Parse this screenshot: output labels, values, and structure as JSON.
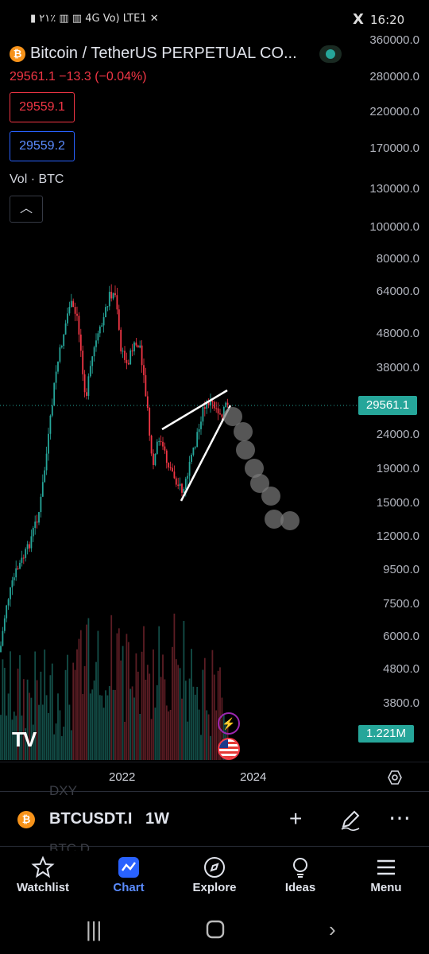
{
  "status": {
    "left": "▮ ٢١٪  ▥ ▥  4G Vo) LTE1 ✕",
    "right": "16:20",
    "x_icon": "X"
  },
  "header": {
    "symbol_title": "Bitcoin / TetherUS PERPETUAL CO...",
    "price_line": "29561.1  −13.3 (−0.04%)",
    "sell_price": "29559.1",
    "buy_price": "29559.2",
    "volume_label": "Vol · BTC",
    "collapse_icon": "chevron-up-icon"
  },
  "price_axis": [
    "360000.0",
    "280000.0",
    "220000.0",
    "170000.0",
    "130000.0",
    "100000.0",
    "80000.0",
    "64000.0",
    "48000.0",
    "38000.0",
    "24000.0",
    "19000.0",
    "15000.0",
    "12000.0",
    "9500.0",
    "7500.0",
    "6000.0",
    "4800.0",
    "3800.0"
  ],
  "current_price_tag": "29561.1",
  "volume_tag": "1.221M",
  "x_axis": [
    "2022",
    "2024"
  ],
  "logo": "TV",
  "symbol_bar": {
    "ghost_above": "DXY",
    "ghost_below": "BTC.D",
    "name": "BTCUSDT.I",
    "timeframe": "1W"
  },
  "nav": [
    {
      "label": "Watchlist",
      "icon": "☆"
    },
    {
      "label": "Chart",
      "icon": "〰"
    },
    {
      "label": "Explore",
      "icon": "⊘"
    },
    {
      "label": "Ideas",
      "icon": "💡"
    },
    {
      "label": "Menu",
      "icon": "☰"
    }
  ],
  "chart_data": {
    "type": "candlestick",
    "scale": "log",
    "x_labels": [
      "2022",
      "2024"
    ],
    "last_price": 29561.1,
    "volume_last": "1.221M"
  }
}
